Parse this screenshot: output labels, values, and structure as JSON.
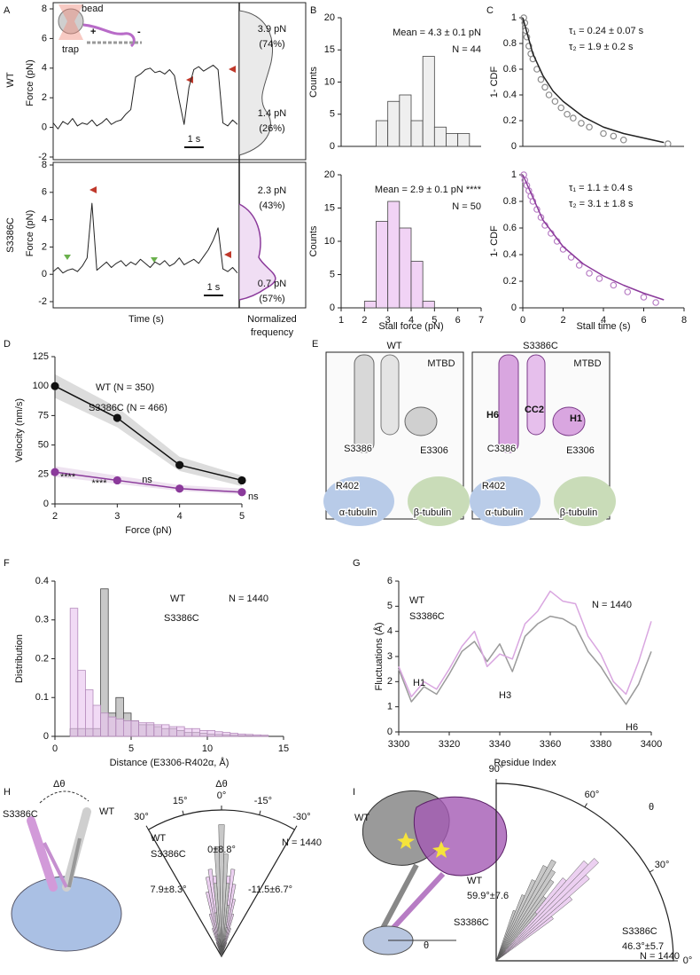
{
  "figure_text": {
    "panels": [
      "A",
      "B",
      "C",
      "D",
      "E",
      "F",
      "G",
      "H",
      "I"
    ],
    "inset": [
      "bead",
      "trap",
      "+",
      "-"
    ],
    "E_wt": [
      "WT",
      "MTBD",
      "S3386",
      "E3306",
      "R402",
      "α-tubulin",
      "β-tubulin"
    ],
    "E_mut": [
      "S3386C",
      "MTBD",
      "H6",
      "CC2",
      "C3386",
      "H1",
      "E3306",
      "R402",
      "α-tubulin",
      "β-tubulin"
    ],
    "H_struct": [
      "S3386C",
      "WT",
      "Δθ"
    ],
    "I_struct": [
      "WT",
      "S3386C",
      "θ"
    ]
  },
  "chart_data": [
    {
      "type": "line",
      "title": "WT",
      "y_label": "Force (pN)",
      "color": "#222",
      "x": [
        0,
        0.25,
        0.5,
        0.75,
        1,
        1.25,
        1.5,
        1.75,
        2,
        2.25,
        2.5,
        2.75,
        3,
        3.25,
        3.5,
        3.75,
        4,
        4.25,
        4.5,
        4.75,
        5,
        5.25,
        5.5,
        5.75,
        6,
        6.25,
        6.5,
        6.75,
        7,
        7.25,
        7.5,
        7.75,
        8,
        8.25,
        8.5,
        8.75,
        9,
        9.25,
        9.5
      ],
      "values": [
        0.3,
        -0.1,
        0.4,
        0.2,
        0.6,
        0.1,
        0.3,
        0.2,
        0.5,
        0.1,
        0.3,
        0.6,
        0.2,
        0.4,
        0.5,
        0.9,
        1.2,
        3.4,
        3.6,
        3.9,
        4.0,
        3.7,
        3.8,
        3.6,
        3.9,
        3.5,
        1.8,
        0.2,
        2.7,
        3.9,
        4.1,
        3.8,
        4.0,
        4.2,
        3.9,
        0.3,
        0.1,
        0.5,
        0.2
      ],
      "xlim": [
        0,
        9.5
      ],
      "ylim": [
        -2,
        8
      ],
      "yticks": [
        -2,
        0,
        2,
        4,
        6,
        8
      ],
      "annotations": [
        "3.9 pN",
        "(74%)",
        "1.4 pN",
        "(26%)"
      ],
      "scale_bar": {
        "value": 1,
        "label": "1 s"
      }
    },
    {
      "type": "line",
      "title": "S3386C",
      "y_label": "Force (pN)",
      "x_label": "Time (s)",
      "side_label": [
        "Normalized",
        "frequency"
      ],
      "color": "#222",
      "x": [
        0,
        0.25,
        0.5,
        0.75,
        1,
        1.25,
        1.5,
        1.75,
        2,
        2.25,
        2.5,
        2.75,
        3,
        3.25,
        3.5,
        3.75,
        4,
        4.25,
        4.5,
        4.75,
        5,
        5.25,
        5.5,
        5.75,
        6,
        6.25,
        6.5,
        6.75,
        7,
        7.25,
        7.5,
        7.75,
        8,
        8.25,
        8.5,
        8.75,
        9,
        9.25,
        9.5
      ],
      "values": [
        0.2,
        0.5,
        0.1,
        0.3,
        0.4,
        0.2,
        0.6,
        1.2,
        5.2,
        0.3,
        0.6,
        0.9,
        0.5,
        0.8,
        1.0,
        0.6,
        0.9,
        0.7,
        1.1,
        0.8,
        0.5,
        0.9,
        0.7,
        1.0,
        0.6,
        0.8,
        1.2,
        0.7,
        0.9,
        1.1,
        0.8,
        1.3,
        1.8,
        2.5,
        3.4,
        0.4,
        0.2,
        0.5,
        0.1
      ],
      "xlim": [
        0,
        9.5
      ],
      "ylim": [
        -2,
        8
      ],
      "yticks": [
        -2,
        0,
        2,
        4,
        6,
        8
      ],
      "annotations": [
        "2.3 pN",
        "(43%)",
        "0.7 pN",
        "(57%)"
      ],
      "scale_bar": {
        "value": 1,
        "label": "1 s"
      }
    },
    {
      "type": "histogram",
      "y_label": "Counts",
      "bins": [
        2.5,
        3,
        3.5,
        4,
        4.5,
        5,
        5.5,
        6,
        6.5
      ],
      "values": [
        4,
        7,
        8,
        4,
        14,
        3,
        2,
        2
      ],
      "color": "#efefef",
      "edgecolor": "#444",
      "xlim": [
        1,
        7
      ],
      "ylim": [
        0,
        20
      ],
      "yticks": [
        0,
        5,
        10,
        15,
        20
      ],
      "annotations": [
        "Mean = 4.3 ± 0.1 pN",
        "N = 44"
      ]
    },
    {
      "type": "histogram",
      "y_label": "Counts",
      "x_label": "Stall force (pN)",
      "bins": [
        2,
        2.5,
        3,
        3.5,
        4,
        4.5,
        5
      ],
      "values": [
        1,
        13,
        16,
        12,
        7,
        1
      ],
      "color": "#f1d3f5",
      "edgecolor": "#444",
      "xlim": [
        1,
        7
      ],
      "xticks": [
        1,
        2,
        3,
        4,
        5,
        6,
        7
      ],
      "ylim": [
        0,
        20
      ],
      "yticks": [
        0,
        5,
        10,
        15,
        20
      ],
      "annotations": [
        "Mean = 2.9 ± 0.1 pN ****",
        "N = 50"
      ]
    },
    {
      "type": "line",
      "y_label": "1- CDF",
      "xlim": [
        0,
        8
      ],
      "ylim": [
        0,
        1
      ],
      "yticks": [
        0,
        0.2,
        0.4,
        0.6,
        0.8,
        1
      ],
      "series": [
        {
          "style": "points",
          "color": "#8a8a8a",
          "x": [
            0.05,
            0.1,
            0.15,
            0.2,
            0.3,
            0.4,
            0.5,
            0.7,
            0.9,
            1.1,
            1.3,
            1.6,
            1.9,
            2.2,
            2.5,
            2.9,
            3.3,
            4,
            4.5,
            5,
            7.2
          ],
          "values": [
            1,
            0.96,
            0.9,
            0.85,
            0.78,
            0.72,
            0.68,
            0.6,
            0.52,
            0.46,
            0.4,
            0.35,
            0.3,
            0.25,
            0.22,
            0.18,
            0.15,
            0.1,
            0.08,
            0.05,
            0.02
          ]
        },
        {
          "style": "line",
          "color": "#222",
          "x": [
            0,
            0.5,
            1,
            1.5,
            2,
            3,
            4,
            5,
            7
          ],
          "values": [
            1,
            0.72,
            0.55,
            0.43,
            0.35,
            0.23,
            0.15,
            0.1,
            0.03
          ]
        }
      ],
      "annotations": [
        "τ₁ = 0.24  ± 0.07 s",
        "τ₂ = 1.9  ± 0.2 s"
      ]
    },
    {
      "type": "line",
      "y_label": "1- CDF",
      "x_label": "Stall time (s)",
      "xlim": [
        0,
        8
      ],
      "xticks": [
        0,
        2,
        4,
        6,
        8
      ],
      "ylim": [
        0,
        1
      ],
      "yticks": [
        0,
        0.2,
        0.4,
        0.6,
        0.8,
        1
      ],
      "series": [
        {
          "style": "points",
          "color": "#b77cc4",
          "x": [
            0.05,
            0.1,
            0.2,
            0.3,
            0.4,
            0.5,
            0.7,
            0.9,
            1.1,
            1.4,
            1.7,
            2,
            2.4,
            2.8,
            3.3,
            3.8,
            4.5,
            5.2,
            6,
            6.6
          ],
          "values": [
            1,
            0.96,
            0.92,
            0.88,
            0.84,
            0.8,
            0.74,
            0.68,
            0.62,
            0.56,
            0.5,
            0.44,
            0.38,
            0.32,
            0.26,
            0.22,
            0.17,
            0.12,
            0.08,
            0.04
          ]
        },
        {
          "style": "line",
          "color": "#8b3a9b",
          "x": [
            0,
            1,
            2,
            3,
            4,
            5,
            6,
            7
          ],
          "values": [
            1,
            0.66,
            0.46,
            0.33,
            0.24,
            0.17,
            0.11,
            0.06
          ]
        }
      ],
      "annotations": [
        "τ₁ = 1.1  ± 0.4 s",
        "τ₂ = 3.1  ± 1.8 s"
      ]
    },
    {
      "type": "line",
      "x_label": "Force (pN)",
      "y_label": "Velocity (nm/s)",
      "x": [
        2,
        3,
        4,
        5
      ],
      "xlim": [
        2,
        5
      ],
      "xticks": [
        2,
        3,
        4,
        5
      ],
      "ylim": [
        0,
        125
      ],
      "yticks": [
        0,
        25,
        50,
        75,
        100,
        125
      ],
      "series": [
        {
          "name": "WT (N = 350)",
          "style": "line+points",
          "color": "#111",
          "values": [
            100,
            73,
            33,
            20
          ],
          "ci_lower": [
            90,
            65,
            28,
            15
          ],
          "ci_upper": [
            110,
            82,
            40,
            24
          ]
        },
        {
          "name": "S3386C (N = 466)",
          "style": "line+points",
          "color": "#8b3a9b",
          "values": [
            27,
            20,
            13,
            10
          ],
          "ci_lower": [
            23,
            17,
            11,
            8
          ],
          "ci_upper": [
            32,
            24,
            16,
            13
          ]
        }
      ],
      "annotations": [
        "****",
        "****",
        "ns",
        "ns"
      ]
    },
    {
      "type": "histogram",
      "x_label": "Distance (E3306-R402α, Å)",
      "y_label": "Distribution",
      "bins": [
        1,
        1.5,
        2,
        2.5,
        3,
        3.5,
        4,
        4.5,
        5,
        5.5,
        6,
        6.5,
        7,
        7.5,
        8,
        8.5,
        9,
        9.5,
        10,
        10.5,
        11,
        11.5,
        12,
        12.5,
        13,
        13.5,
        14
      ],
      "xlim": [
        0,
        15
      ],
      "xticks": [
        0,
        5,
        10,
        15
      ],
      "ylim": [
        0,
        0.4
      ],
      "yticks": [
        0,
        0.1,
        0.2,
        0.3,
        0.4
      ],
      "series": [
        {
          "name": "WT",
          "color": "#c8c8c8",
          "edgecolor": "#444",
          "text_color": "#111",
          "values": [
            0.02,
            0.02,
            0.02,
            0.02,
            0.38,
            0.06,
            0.1,
            0.06,
            0.04,
            0.03,
            0.03,
            0.025,
            0.02,
            0.02,
            0.015,
            0.01,
            0.01,
            0.008,
            0.006,
            0.005,
            0.004,
            0.003,
            0.002,
            0.002,
            0.001,
            0.001
          ]
        },
        {
          "name": "S3386C",
          "color": "#e9c6ef",
          "edgecolor": "#b48abb",
          "alpha": 0.65,
          "text_color": "#8b3a9b",
          "values": [
            0.33,
            0.17,
            0.12,
            0.08,
            0.06,
            0.05,
            0.045,
            0.04,
            0.04,
            0.035,
            0.035,
            0.03,
            0.03,
            0.025,
            0.025,
            0.02,
            0.02,
            0.015,
            0.015,
            0.012,
            0.01,
            0.008,
            0.006,
            0.005,
            0.004,
            0.003
          ]
        }
      ],
      "annotations": [
        "N = 1440"
      ]
    },
    {
      "type": "line",
      "x_label": "Residue Index",
      "y_label": "Fluctuations (Å)",
      "x": [
        3300,
        3305,
        3310,
        3315,
        3320,
        3325,
        3330,
        3335,
        3340,
        3345,
        3350,
        3355,
        3360,
        3365,
        3370,
        3375,
        3380,
        3385,
        3390,
        3395,
        3400
      ],
      "xlim": [
        3300,
        3400
      ],
      "xticks": [
        3300,
        3320,
        3340,
        3360,
        3380,
        3400
      ],
      "ylim": [
        0,
        6
      ],
      "yticks": [
        0,
        1,
        2,
        3,
        4,
        5,
        6
      ],
      "series": [
        {
          "name": "WT",
          "style": "line",
          "color": "#9a9a9a",
          "text_color": "#111",
          "values": [
            2.5,
            1.2,
            1.8,
            1.5,
            2.3,
            3.2,
            3.6,
            2.8,
            3.5,
            2.4,
            3.8,
            4.3,
            4.6,
            4.5,
            4.2,
            3.2,
            2.6,
            1.8,
            1.1,
            1.9,
            3.2
          ]
        },
        {
          "name": "S3386C",
          "style": "line",
          "color": "#d9a6e0",
          "text_color": "#8b3a9b",
          "values": [
            2.6,
            1.4,
            2.0,
            1.7,
            2.5,
            3.4,
            4.0,
            2.6,
            3.1,
            2.9,
            4.3,
            4.8,
            5.6,
            5.2,
            5.1,
            3.8,
            3.1,
            2.0,
            1.5,
            2.8,
            4.4
          ]
        }
      ],
      "annotations": [
        "N = 1440",
        "H1",
        "H3",
        "H6"
      ]
    },
    {
      "type": "polar",
      "title": "Δθ",
      "zero": "top",
      "alim": [
        -30,
        30
      ],
      "rlim": [
        0,
        1
      ],
      "aticks": [
        {
          "value": 30,
          "label": "30°"
        },
        {
          "value": 15,
          "label": "15°"
        },
        {
          "value": 0,
          "label": "0°"
        },
        {
          "value": -15,
          "label": "-15°"
        },
        {
          "value": -30,
          "label": "-30°"
        }
      ],
      "series": [
        {
          "name": "WT",
          "color": "#c8c8c8",
          "text_color": "#111",
          "angles": [
            -10,
            -7.5,
            -5,
            -2.5,
            0,
            2.5,
            5,
            7.5,
            10
          ],
          "values": [
            0.2,
            0.35,
            0.5,
            0.7,
            0.9,
            0.75,
            0.5,
            0.3,
            0.15
          ]
        },
        {
          "name": "S3386C",
          "color": "#ecd0f1",
          "text_color": "#8b3a9b",
          "angles": [
            -20,
            -17.5,
            -15,
            -12.5,
            -10,
            -7.5,
            -5,
            -2.5,
            0,
            2.5,
            5,
            7.5,
            10,
            12.5,
            15,
            17.5,
            20
          ],
          "values": [
            0.1,
            0.2,
            0.3,
            0.4,
            0.5,
            0.6,
            0.55,
            0.5,
            0.45,
            0.5,
            0.55,
            0.6,
            0.55,
            0.45,
            0.3,
            0.2,
            0.1
          ]
        }
      ],
      "annotations": [
        "0±8.8°",
        "7.9±8.3°",
        "-11.5±6.7°",
        "N = 1440"
      ]
    },
    {
      "type": "polar",
      "title": "θ",
      "zero": "right",
      "alim": [
        0,
        90
      ],
      "rlim": [
        0,
        1
      ],
      "aticks": [
        {
          "value": 0,
          "label": "0°"
        },
        {
          "value": 30,
          "label": "30°"
        },
        {
          "value": 60,
          "label": "60°"
        },
        {
          "value": 90,
          "label": "90°"
        }
      ],
      "series": [
        {
          "name": "WT",
          "color": "#c8c8c8",
          "text_color": "#111",
          "angles": [
            50,
            52.5,
            55,
            57.5,
            60,
            62.5,
            65,
            67.5,
            70
          ],
          "values": [
            0.35,
            0.45,
            0.55,
            0.6,
            0.65,
            0.6,
            0.5,
            0.4,
            0.3
          ]
        },
        {
          "name": "S3386C",
          "color": "#ecd0f1",
          "text_color": "#8b3a9b",
          "angles": [
            37.5,
            40,
            42.5,
            45,
            47.5,
            50,
            52.5,
            55
          ],
          "values": [
            0.4,
            0.55,
            0.7,
            0.8,
            0.75,
            0.6,
            0.45,
            0.3
          ]
        }
      ],
      "annotations": [
        "59.9°±7.6",
        "46.3°±5.7",
        "N = 1440"
      ]
    }
  ]
}
